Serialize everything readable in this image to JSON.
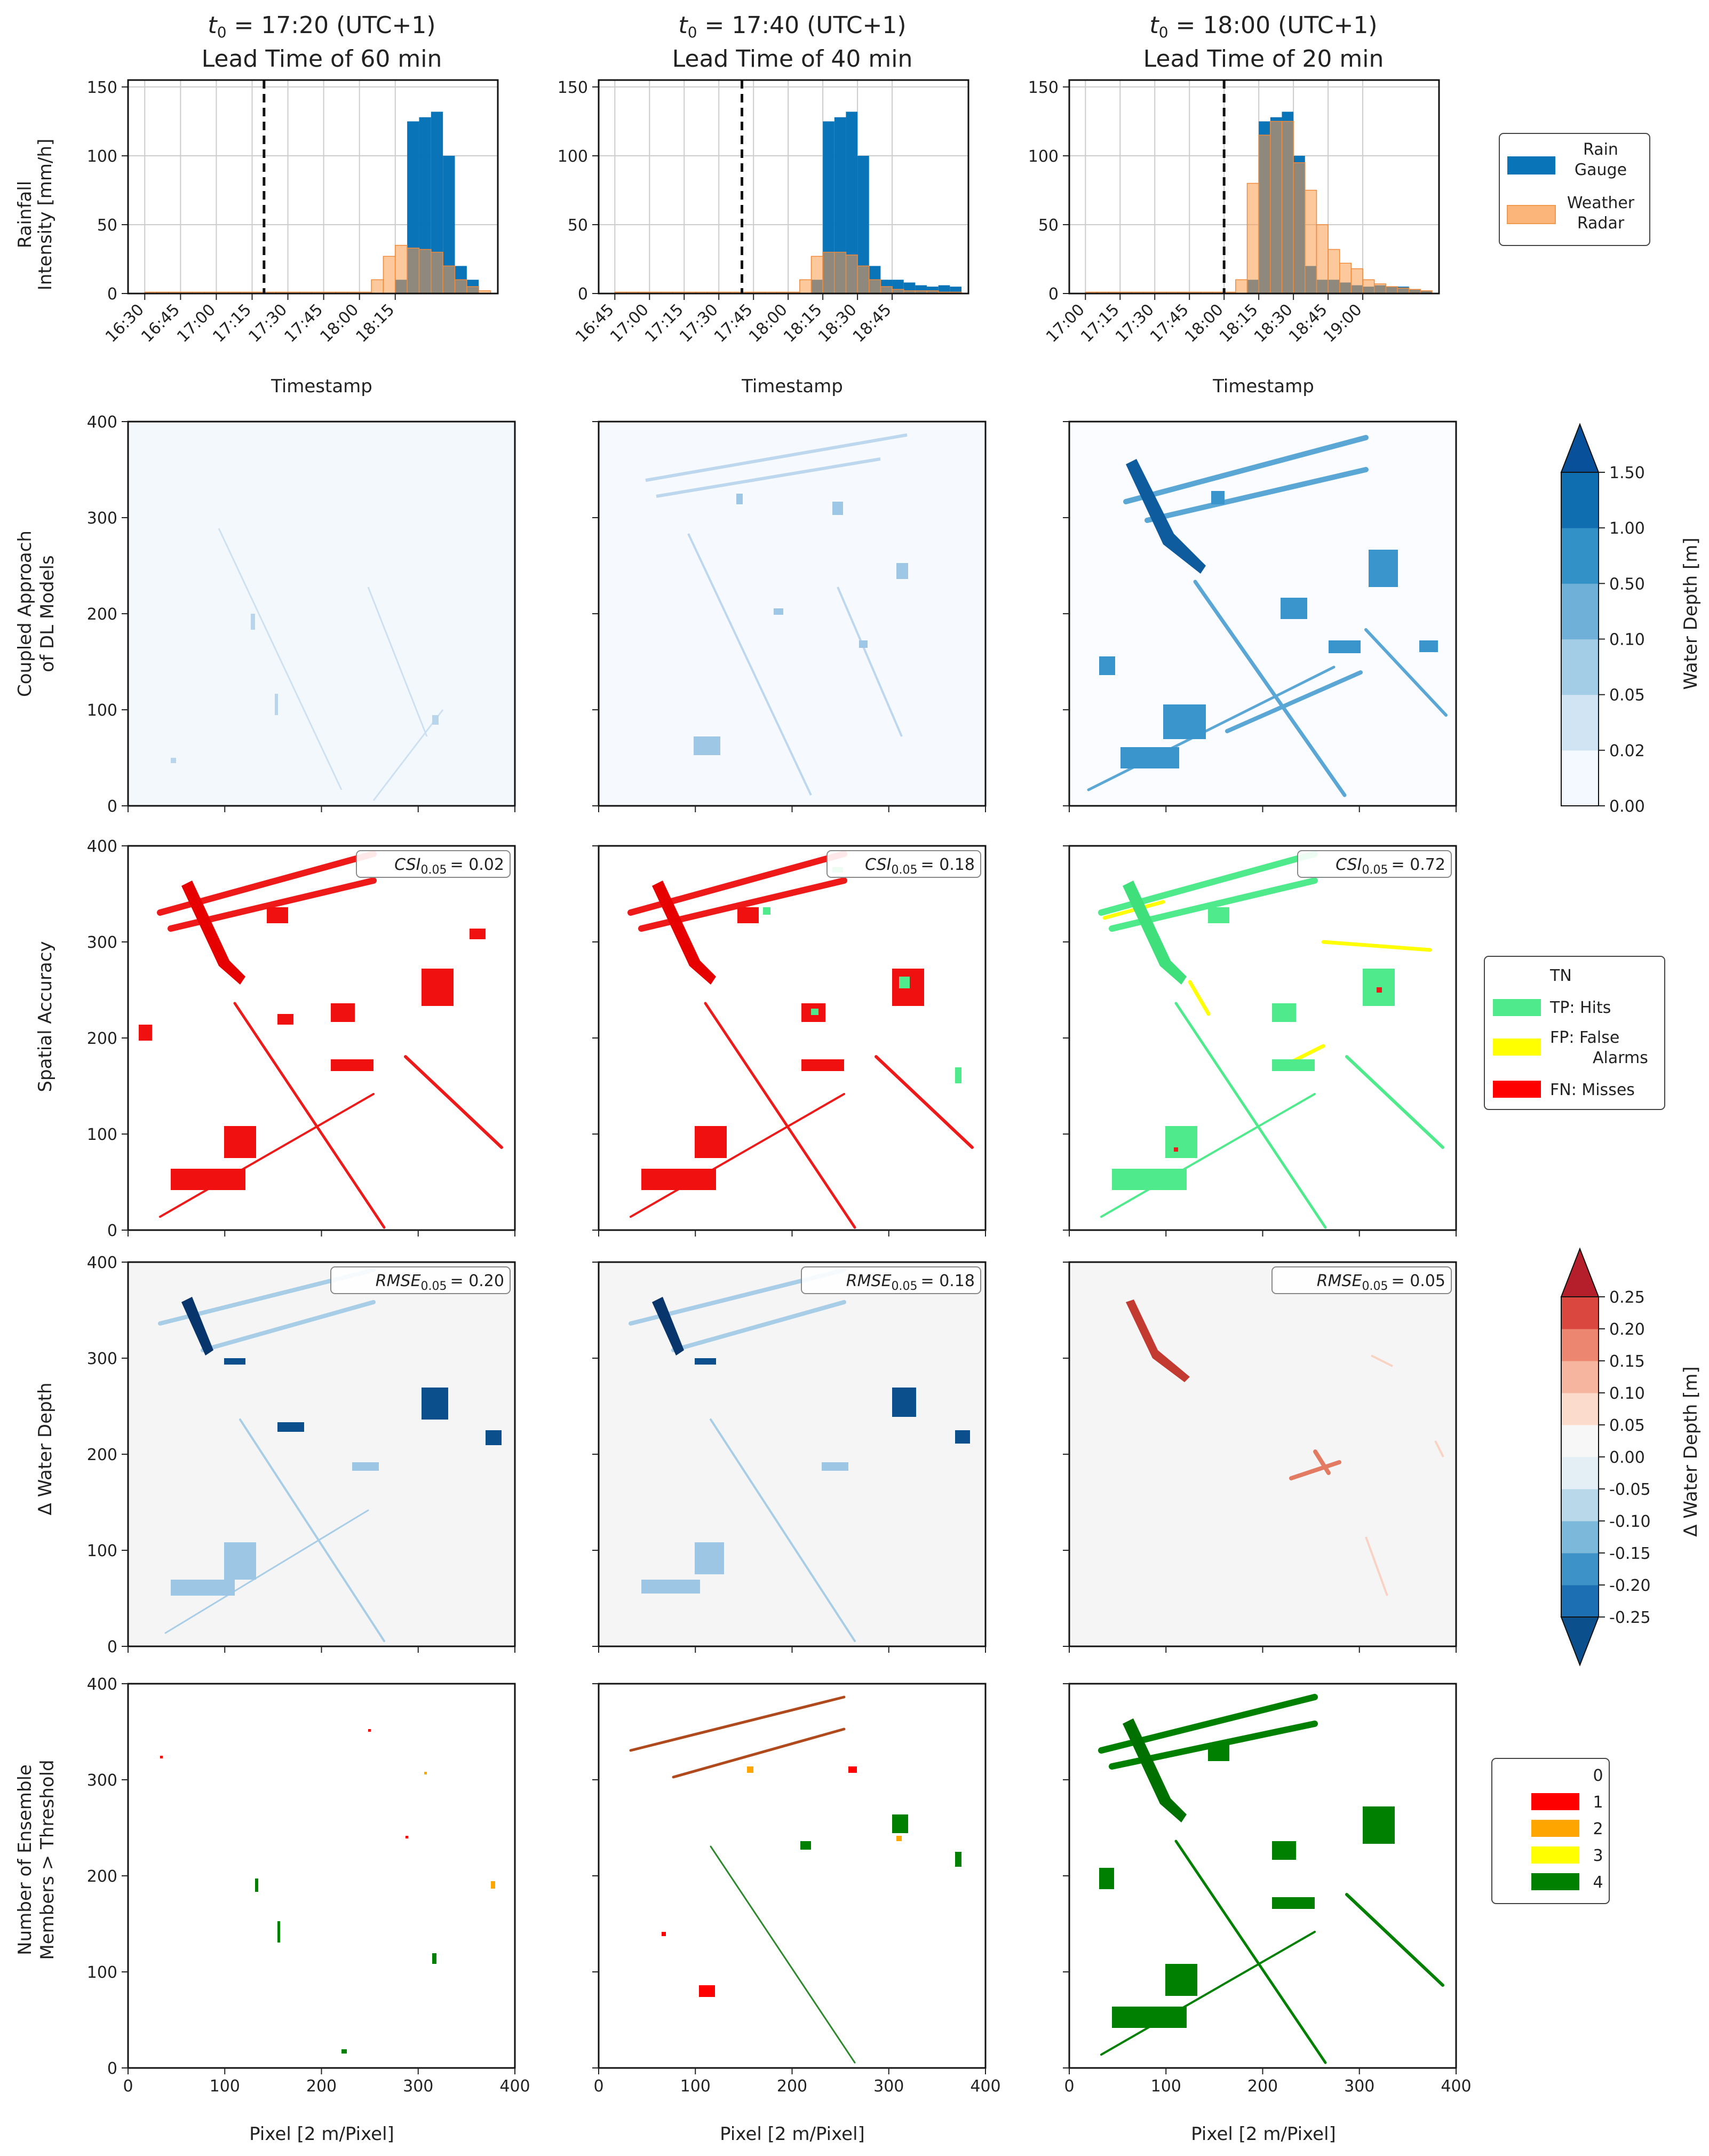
{
  "chart_data": [
    {
      "type": "bar",
      "panel": "rainfall",
      "columns": [
        {
          "title_line1_var": "t",
          "title_line1_sub": "0",
          "title_line1_rest": " = 17:20 (UTC+1)",
          "title_line2": "Lead Time of 60 min",
          "xticks": [
            "16:30",
            "16:45",
            "17:00",
            "17:15",
            "17:30",
            "17:45",
            "18:00",
            "18:15"
          ],
          "x_start_min": 990,
          "bin_min": 5,
          "t0_min": 1040,
          "gauge": [
            0,
            0,
            0,
            0,
            0,
            0,
            0,
            0,
            0,
            0,
            0,
            0,
            0,
            0,
            0,
            0,
            0,
            0,
            0,
            0,
            0,
            10,
            125,
            128,
            132,
            100,
            20,
            10,
            0
          ],
          "radar": [
            1,
            1,
            1,
            1,
            1,
            1,
            1,
            1,
            1,
            1,
            1,
            1,
            1,
            1,
            1,
            1,
            1,
            1,
            1,
            10,
            27,
            35,
            33,
            32,
            30,
            20,
            10,
            5,
            2
          ]
        },
        {
          "title_line1_var": "t",
          "title_line1_sub": "0",
          "title_line1_rest": " = 17:40 (UTC+1)",
          "title_line2": "Lead Time of 40 min",
          "xticks": [
            "16:45",
            "17:00",
            "17:15",
            "17:30",
            "17:45",
            "18:00",
            "18:15",
            "18:30",
            "18:45"
          ],
          "x_start_min": 1005,
          "bin_min": 5,
          "t0_min": 1060,
          "gauge": [
            0,
            0,
            0,
            0,
            0,
            0,
            0,
            0,
            0,
            0,
            0,
            0,
            0,
            0,
            0,
            0,
            0,
            10,
            125,
            128,
            132,
            100,
            20,
            10,
            10,
            8,
            6,
            5,
            6,
            5
          ],
          "radar": [
            1,
            1,
            1,
            1,
            1,
            1,
            1,
            1,
            1,
            1,
            1,
            1,
            1,
            1,
            1,
            1,
            10,
            27,
            30,
            30,
            28,
            20,
            10,
            5,
            3,
            2,
            2,
            2,
            1,
            1
          ]
        },
        {
          "title_line1_var": "t",
          "title_line1_sub": "0",
          "title_line1_rest": " = 18:00 (UTC+1)",
          "title_line2": "Lead Time of 20 min",
          "xticks": [
            "17:00",
            "17:15",
            "17:30",
            "17:45",
            "18:00",
            "18:15",
            "18:30",
            "18:45",
            "19:00"
          ],
          "x_start_min": 1020,
          "bin_min": 5,
          "t0_min": 1080,
          "gauge": [
            0,
            0,
            0,
            0,
            0,
            0,
            0,
            0,
            0,
            0,
            0,
            0,
            0,
            0,
            10,
            125,
            128,
            132,
            100,
            20,
            10,
            10,
            8,
            6,
            5,
            6,
            5,
            5,
            3,
            2
          ],
          "radar": [
            1,
            1,
            1,
            1,
            1,
            1,
            1,
            1,
            1,
            1,
            1,
            1,
            1,
            10,
            80,
            115,
            125,
            125,
            95,
            75,
            50,
            32,
            22,
            18,
            10,
            7,
            5,
            4,
            3,
            2
          ]
        }
      ],
      "ylabel_line1": "Rainfall",
      "ylabel_line2": "Intensity [mm/h]",
      "xlabel": "Timestamp",
      "ylim": [
        0,
        155
      ],
      "yticks": [
        "0",
        "50",
        "100",
        "150"
      ],
      "legend": [
        {
          "label_line1": "Rain",
          "label_line2": "Gauge",
          "color": "#0a74b8"
        },
        {
          "label_line1": "Weather",
          "label_line2": "Radar",
          "color": "#fbb57a"
        }
      ]
    },
    {
      "type": "heatmap",
      "panel": "coupled-approach",
      "ylabel_line1": "Coupled Approach",
      "ylabel_line2": "of DL Models",
      "colorbar_label": "Water Depth [m]",
      "colorbar_ticks": [
        "0.00",
        "0.02",
        "0.05",
        "0.10",
        "0.50",
        "1.00",
        "1.50"
      ],
      "colorbar_colors": [
        "#f4f9ff",
        "#d1e4f4",
        "#a3cce6",
        "#6eb0d8",
        "#3291c6",
        "#0e6eb0",
        "#08509a"
      ]
    },
    {
      "type": "heatmap",
      "panel": "spatial-accuracy",
      "ylabel": "Spatial Accuracy",
      "annotations": [
        {
          "metric": "CSI",
          "sub": "0.05",
          "value": "= 0.02"
        },
        {
          "metric": "CSI",
          "sub": "0.05",
          "value": "= 0.18"
        },
        {
          "metric": "CSI",
          "sub": "0.05",
          "value": "= 0.72"
        }
      ],
      "legend": [
        {
          "label_line1": "TN",
          "label_line2": "",
          "color": "#ffffff"
        },
        {
          "label_line1": "TP: Hits",
          "label_line2": "",
          "color": "#4eea8b"
        },
        {
          "label_line1": "FP: False",
          "label_line2": "Alarms",
          "color": "#ffff00"
        },
        {
          "label_line1": "FN: Misses",
          "label_line2": "",
          "color": "#ff0000"
        }
      ]
    },
    {
      "type": "heatmap",
      "panel": "delta-water-depth",
      "ylabel": "Δ Water Depth",
      "annotations": [
        {
          "metric": "RMSE",
          "sub": "0.05",
          "value": "= 0.20"
        },
        {
          "metric": "RMSE",
          "sub": "0.05",
          "value": "= 0.18"
        },
        {
          "metric": "RMSE",
          "sub": "0.05",
          "value": "= 0.05"
        }
      ],
      "colorbar_label": "Δ Water Depth [m]",
      "colorbar_ticks": [
        "-0.25",
        "-0.20",
        "-0.15",
        "-0.10",
        "-0.05",
        "0.00",
        "0.05",
        "0.10",
        "0.15",
        "0.20",
        "0.25"
      ],
      "colorbar_colors": [
        "#0b4f8c",
        "#1c6fb3",
        "#3d93c8",
        "#7cb8da",
        "#b9d8ea",
        "#e4eef5",
        "#f7f7f7",
        "#fbdccc",
        "#f6b59e",
        "#ec8670",
        "#d9473e",
        "#b51f2b"
      ]
    },
    {
      "type": "heatmap",
      "panel": "ensemble-members",
      "ylabel_line1": "Number of Ensemble",
      "ylabel_line2": "Members > Threshold",
      "legend": [
        {
          "label": "0",
          "color": "#ffffff"
        },
        {
          "label": "1",
          "color": "#ff0000"
        },
        {
          "label": "2",
          "color": "#ffa500"
        },
        {
          "label": "3",
          "color": "#ffff00"
        },
        {
          "label": "4",
          "color": "#008000"
        }
      ]
    }
  ],
  "map_axes": {
    "xlabel": "Pixel [2 m/Pixel]",
    "ticks": [
      "0",
      "100",
      "200",
      "300",
      "400"
    ]
  }
}
